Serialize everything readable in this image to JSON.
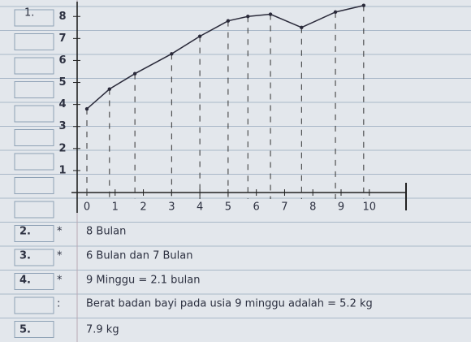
{
  "chart_data": {
    "type": "line",
    "question_number": "1.",
    "x": [
      0,
      0.8,
      1.7,
      3,
      4,
      5,
      5.7,
      6.5,
      7.6,
      8.8,
      9.8
    ],
    "series": [
      {
        "color": "#2a2a3a",
        "values": [
          3.8,
          4.7,
          5.4,
          6.3,
          7.1,
          7.8,
          8,
          8.1,
          7.5,
          8.2,
          8.5
        ]
      }
    ],
    "xlim": [
      0,
      11.3
    ],
    "ylim": [
      0,
      8.6
    ],
    "xticks": [
      0,
      1,
      2,
      3,
      4,
      5,
      6,
      7,
      8,
      9,
      10
    ],
    "yticks": [
      1,
      2,
      3,
      4,
      5,
      6,
      7,
      8
    ]
  },
  "notes": [
    {
      "number": "2.",
      "mark": "*",
      "text": "8 Bulan"
    },
    {
      "number": "3.",
      "mark": "*",
      "text": "6 Bulan dan 7 Bulan"
    },
    {
      "number": "4.",
      "mark": "*",
      "text": "9 Minggu = 2.1 bulan"
    },
    {
      "mark": ":",
      "text": "Berat badan bayi pada usia 9 minggu adalah = 5.2 kg"
    },
    {
      "number": "5.",
      "text": "7.9 kg"
    }
  ]
}
